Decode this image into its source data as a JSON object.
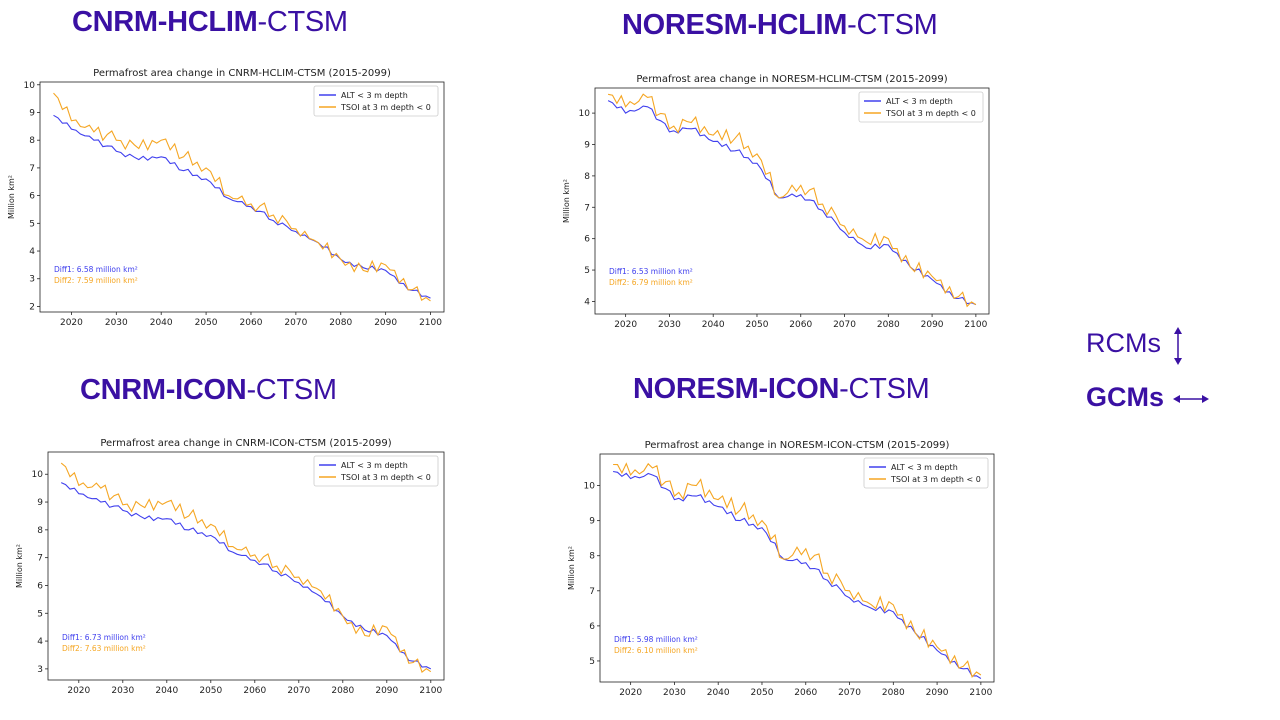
{
  "headings": [
    {
      "bold": "CNRM-HCLIM",
      "rest": "-CTSM"
    },
    {
      "bold": "NORESM-HCLIM",
      "rest": "-CTSM"
    },
    {
      "bold": "CNRM-ICON",
      "rest": "-CTSM"
    },
    {
      "bold": "NORESM-ICON",
      "rest": "-CTSM"
    }
  ],
  "side": {
    "rcms": "RCMs",
    "gcms": "GCMs"
  },
  "colors": {
    "alt": "#4040ee",
    "tsoi": "#f5a623",
    "heading": "#3a10a3"
  },
  "chart_data": [
    {
      "type": "line",
      "title": "Permafrost area change in CNRM-HCLIM-CTSM (2015-2099)",
      "ylabel": "Million km²",
      "xlim": [
        2013,
        2103
      ],
      "ylim": [
        1.8,
        10.1
      ],
      "xticks": [
        2020,
        2030,
        2040,
        2050,
        2060,
        2070,
        2080,
        2090,
        2100
      ],
      "yticks": [
        2,
        3,
        4,
        5,
        6,
        7,
        8,
        9,
        10
      ],
      "legend": "top-right",
      "series": [
        {
          "name": "ALT < 3 m depth",
          "color": "#4040ee",
          "x": [
            2016,
            2020,
            2025,
            2030,
            2035,
            2040,
            2045,
            2050,
            2055,
            2060,
            2065,
            2070,
            2075,
            2080,
            2085,
            2090,
            2095,
            2100
          ],
          "y": [
            8.9,
            8.4,
            8.0,
            7.6,
            7.3,
            7.4,
            6.9,
            6.6,
            5.9,
            5.6,
            5.1,
            4.7,
            4.3,
            3.7,
            3.4,
            3.3,
            2.6,
            2.3
          ]
        },
        {
          "name": "TSOI at 3 m depth < 0",
          "color": "#f5a623",
          "x": [
            2016,
            2020,
            2025,
            2030,
            2035,
            2040,
            2045,
            2050,
            2055,
            2060,
            2065,
            2070,
            2075,
            2080,
            2085,
            2090,
            2095,
            2100
          ],
          "y": [
            9.7,
            8.7,
            8.3,
            8.0,
            7.7,
            8.0,
            7.4,
            7.0,
            6.0,
            5.7,
            5.3,
            4.8,
            4.3,
            3.7,
            3.3,
            3.5,
            2.6,
            2.2
          ]
        }
      ],
      "annotations": [
        "Diff1: 6.58 million km²",
        "Diff2: 7.59 million km²"
      ]
    },
    {
      "type": "line",
      "title": "Permafrost area change in NORESM-HCLIM-CTSM (2015-2099)",
      "ylabel": "Million km²",
      "xlim": [
        2013,
        2103
      ],
      "ylim": [
        3.6,
        10.8
      ],
      "xticks": [
        2020,
        2030,
        2040,
        2050,
        2060,
        2070,
        2080,
        2090,
        2100
      ],
      "yticks": [
        4,
        5,
        6,
        7,
        8,
        9,
        10
      ],
      "legend": "top-right",
      "series": [
        {
          "name": "ALT < 3 m depth",
          "color": "#4040ee",
          "x": [
            2016,
            2020,
            2025,
            2030,
            2035,
            2040,
            2045,
            2050,
            2055,
            2060,
            2065,
            2070,
            2075,
            2080,
            2085,
            2090,
            2095,
            2100
          ],
          "y": [
            10.4,
            10.0,
            10.2,
            9.4,
            9.5,
            9.1,
            8.8,
            8.4,
            7.3,
            7.4,
            6.9,
            6.2,
            5.7,
            5.8,
            5.1,
            4.7,
            4.1,
            3.9
          ]
        },
        {
          "name": "TSOI at 3 m depth < 0",
          "color": "#f5a623",
          "x": [
            2016,
            2020,
            2025,
            2030,
            2035,
            2040,
            2045,
            2050,
            2055,
            2060,
            2065,
            2070,
            2075,
            2080,
            2085,
            2090,
            2095,
            2100
          ],
          "y": [
            10.6,
            10.2,
            10.5,
            9.5,
            9.7,
            9.3,
            9.2,
            8.7,
            7.3,
            7.7,
            7.1,
            6.4,
            5.9,
            6.0,
            5.1,
            4.8,
            4.1,
            3.9
          ]
        }
      ],
      "annotations": [
        "Diff1: 6.53 million km²",
        "Diff2: 6.79 million km²"
      ]
    },
    {
      "type": "line",
      "title": "Permafrost area change in CNRM-ICON-CTSM (2015-2099)",
      "ylabel": "Million km²",
      "xlim": [
        2013,
        2103
      ],
      "ylim": [
        2.6,
        10.8
      ],
      "xticks": [
        2020,
        2030,
        2040,
        2050,
        2060,
        2070,
        2080,
        2090,
        2100
      ],
      "yticks": [
        3,
        4,
        5,
        6,
        7,
        8,
        9,
        10
      ],
      "legend": "top-right",
      "series": [
        {
          "name": "ALT < 3 m depth",
          "color": "#4040ee",
          "x": [
            2016,
            2020,
            2025,
            2030,
            2035,
            2040,
            2045,
            2050,
            2055,
            2060,
            2065,
            2070,
            2075,
            2080,
            2085,
            2090,
            2095,
            2100
          ],
          "y": [
            9.7,
            9.3,
            9.0,
            8.7,
            8.4,
            8.4,
            8.0,
            7.8,
            7.2,
            6.9,
            6.5,
            6.1,
            5.6,
            4.9,
            4.4,
            4.2,
            3.3,
            3.0
          ]
        },
        {
          "name": "TSOI at 3 m depth < 0",
          "color": "#f5a623",
          "x": [
            2016,
            2020,
            2025,
            2030,
            2035,
            2040,
            2045,
            2050,
            2055,
            2060,
            2065,
            2070,
            2075,
            2080,
            2085,
            2090,
            2095,
            2100
          ],
          "y": [
            10.4,
            9.6,
            9.5,
            8.9,
            8.8,
            9.0,
            8.5,
            8.2,
            7.4,
            7.1,
            6.7,
            6.3,
            5.8,
            4.9,
            4.2,
            4.5,
            3.2,
            2.9
          ]
        }
      ],
      "annotations": [
        "Diff1: 6.73 million km²",
        "Diff2: 7.63 million km²"
      ]
    },
    {
      "type": "line",
      "title": "Permafrost area change in NORESM-ICON-CTSM (2015-2099)",
      "ylabel": "Million km²",
      "xlim": [
        2013,
        2103
      ],
      "ylim": [
        4.4,
        10.9
      ],
      "xticks": [
        2020,
        2030,
        2040,
        2050,
        2060,
        2070,
        2080,
        2090,
        2100
      ],
      "yticks": [
        5,
        6,
        7,
        8,
        9,
        10
      ],
      "legend": "top-right",
      "series": [
        {
          "name": "ALT < 3 m depth",
          "color": "#4040ee",
          "x": [
            2016,
            2020,
            2025,
            2030,
            2035,
            2040,
            2045,
            2050,
            2055,
            2060,
            2065,
            2070,
            2075,
            2080,
            2085,
            2090,
            2095,
            2100
          ],
          "y": [
            10.4,
            10.2,
            10.3,
            9.6,
            9.7,
            9.4,
            9.0,
            8.8,
            7.9,
            7.8,
            7.3,
            6.8,
            6.5,
            6.4,
            5.8,
            5.3,
            4.8,
            4.5
          ]
        },
        {
          "name": "TSOI at 3 m depth < 0",
          "color": "#f5a623",
          "x": [
            2016,
            2020,
            2025,
            2030,
            2035,
            2040,
            2045,
            2050,
            2055,
            2060,
            2065,
            2070,
            2075,
            2080,
            2085,
            2090,
            2095,
            2100
          ],
          "y": [
            10.6,
            10.3,
            10.5,
            9.7,
            10.0,
            9.6,
            9.3,
            9.0,
            7.9,
            8.2,
            7.5,
            7.0,
            6.6,
            6.6,
            5.8,
            5.4,
            4.8,
            4.6
          ]
        }
      ],
      "annotations": [
        "Diff1: 5.98 million km²",
        "Diff2: 6.10 million km²"
      ]
    }
  ]
}
